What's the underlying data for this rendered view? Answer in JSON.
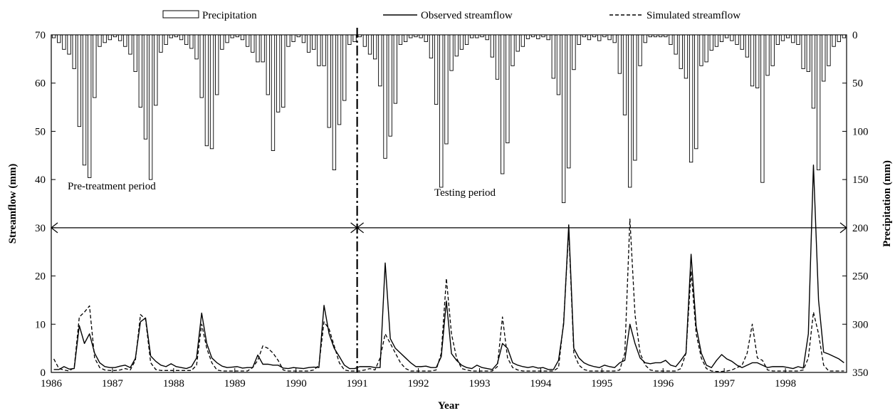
{
  "chart_data": {
    "type": "line",
    "legend": {
      "placement": "top",
      "precipitation": "Precipitation",
      "observed": "Observed streamflow",
      "simulated": "Simulated streamflow"
    },
    "xlabel": "Year",
    "ylabel_left": "Streamflow (mm)",
    "ylabel_right": "Precipitation (mm)",
    "x_ticks": [
      "1986",
      "1987",
      "1988",
      "1989",
      "1990",
      "1991",
      "1992",
      "1993",
      "1994",
      "1995",
      "1996",
      "1997",
      "1998"
    ],
    "y_left_ticks": [
      "0",
      "10",
      "20",
      "30",
      "40",
      "50",
      "60",
      "70"
    ],
    "y_right_ticks": [
      "350",
      "300",
      "250",
      "200",
      "150",
      "100",
      "50",
      "0"
    ],
    "ylim_left": [
      0,
      70
    ],
    "ylim_right_inverted": [
      0,
      350
    ],
    "x_start_year": 1986,
    "months": 156,
    "period_split_year": 1991,
    "period_labels": {
      "pretreatment": "Pre-treatment period",
      "testing": "Testing period"
    },
    "series": [
      {
        "name": "Precipitation",
        "axis": "right",
        "kind": "bar",
        "values": [
          3,
          8,
          15,
          20,
          35,
          95,
          135,
          148,
          65,
          12,
          8,
          5,
          2,
          6,
          12,
          20,
          38,
          75,
          108,
          150,
          73,
          18,
          10,
          3,
          2,
          5,
          10,
          14,
          25,
          65,
          115,
          118,
          62,
          15,
          8,
          3,
          2,
          5,
          12,
          18,
          28,
          28,
          62,
          120,
          80,
          75,
          12,
          7,
          2,
          8,
          18,
          15,
          32,
          32,
          96,
          140,
          93,
          68,
          10,
          7,
          2,
          12,
          20,
          25,
          53,
          128,
          105,
          71,
          10,
          7,
          3,
          2,
          3,
          7,
          24,
          72,
          158,
          113,
          37,
          22,
          15,
          10,
          3,
          3,
          2,
          5,
          23,
          46,
          144,
          112,
          32,
          17,
          12,
          4,
          2,
          4,
          2,
          5,
          45,
          62,
          174,
          138,
          36,
          10,
          2,
          5,
          2,
          6,
          2,
          5,
          8,
          40,
          83,
          158,
          130,
          32,
          8,
          2,
          2,
          2,
          2,
          10,
          20,
          35,
          45,
          132,
          118,
          32,
          28,
          16,
          12,
          7,
          3,
          6,
          10,
          15,
          23,
          53,
          55,
          153,
          42,
          32,
          10,
          6,
          3,
          8,
          10,
          35,
          38,
          76,
          140,
          48,
          32,
          12,
          7,
          3
        ]
      },
      {
        "name": "Observed streamflow",
        "axis": "left",
        "kind": "line",
        "values": [
          0.6,
          0.6,
          1.2,
          0.7,
          0.8,
          9.7,
          6.0,
          8.0,
          4.0,
          2.0,
          1.2,
          1.0,
          1.0,
          1.3,
          1.5,
          1.0,
          2.9,
          10.5,
          11.3,
          3.4,
          2.3,
          1.5,
          1.2,
          1.8,
          1.2,
          1.0,
          0.8,
          1.2,
          3.0,
          12.3,
          6.0,
          3.0,
          2.0,
          1.3,
          1.0,
          1.1,
          1.2,
          0.9,
          1.0,
          1.0,
          3.6,
          1.7,
          1.7,
          1.5,
          1.5,
          0.9,
          0.8,
          1.0,
          0.9,
          0.8,
          1.0,
          1.1,
          1.0,
          13.9,
          8.0,
          5.0,
          3.3,
          1.5,
          0.8,
          0.8,
          1.2,
          1.2,
          1.2,
          1.0,
          1.0,
          22.7,
          7.0,
          5.0,
          4.0,
          3.0,
          2.0,
          1.2,
          1.2,
          1.3,
          1.0,
          1.0,
          3.3,
          14.8,
          3.9,
          2.5,
          1.5,
          1.0,
          0.8,
          1.5,
          1.0,
          0.8,
          0.6,
          1.8,
          6.0,
          5.0,
          2.0,
          1.5,
          1.2,
          1.0,
          1.2,
          0.9,
          1.0,
          0.6,
          0.6,
          2.5,
          10.0,
          30.6,
          5.0,
          3.0,
          2.0,
          1.5,
          1.2,
          1.0,
          1.5,
          1.2,
          1.0,
          2.0,
          2.5,
          10.0,
          6.0,
          3.0,
          2.0,
          1.8,
          2.0,
          2.0,
          2.5,
          1.5,
          1.2,
          2.5,
          4.0,
          24.5,
          9.5,
          4.0,
          1.5,
          1.0,
          2.5,
          3.7,
          2.8,
          2.3,
          1.5,
          1.0,
          1.5,
          2.0,
          2.0,
          1.5,
          1.0,
          1.2,
          1.2,
          1.2,
          1.0,
          0.8,
          1.2,
          0.9,
          8.0,
          43.0,
          15.0,
          4.2,
          3.8,
          3.3,
          2.8,
          2.0
        ]
      },
      {
        "name": "Simulated streamflow",
        "axis": "left",
        "kind": "line",
        "values": [
          2.8,
          0.8,
          0.5,
          0.3,
          1.0,
          11.5,
          12.5,
          13.8,
          3.0,
          1.0,
          0.5,
          0.4,
          0.4,
          0.5,
          0.8,
          0.5,
          2.5,
          12.0,
          11.0,
          2.0,
          0.6,
          0.4,
          0.4,
          0.4,
          0.4,
          0.4,
          0.4,
          0.4,
          1.5,
          10.0,
          5.0,
          2.0,
          0.5,
          0.3,
          0.3,
          0.3,
          0.3,
          0.3,
          0.3,
          1.0,
          2.5,
          5.5,
          5.0,
          4.0,
          2.5,
          0.5,
          0.3,
          0.3,
          0.3,
          0.3,
          0.3,
          0.5,
          1.5,
          10.5,
          9.0,
          5.5,
          2.0,
          0.5,
          0.3,
          0.3,
          0.3,
          0.5,
          0.8,
          0.5,
          3.0,
          8.0,
          6.0,
          4.0,
          2.0,
          0.8,
          0.3,
          0.3,
          0.3,
          0.3,
          0.3,
          0.5,
          4.0,
          19.5,
          8.0,
          3.0,
          0.8,
          0.5,
          0.3,
          0.3,
          0.3,
          0.3,
          0.3,
          1.2,
          11.5,
          3.0,
          1.0,
          0.5,
          0.3,
          0.3,
          0.3,
          0.3,
          0.3,
          0.3,
          0.3,
          1.0,
          10.5,
          29.5,
          4.0,
          1.5,
          0.6,
          0.3,
          0.3,
          0.3,
          0.3,
          0.3,
          0.3,
          0.5,
          4.0,
          31.8,
          12.0,
          4.0,
          1.5,
          0.5,
          0.3,
          0.3,
          0.3,
          0.3,
          0.3,
          0.8,
          4.0,
          21.0,
          8.0,
          3.0,
          0.8,
          0.3,
          0.2,
          0.2,
          0.3,
          0.5,
          1.0,
          1.5,
          4.0,
          10.0,
          3.0,
          2.5,
          0.5,
          0.3,
          0.3,
          0.3,
          0.3,
          0.3,
          0.3,
          0.5,
          3.0,
          12.5,
          8.0,
          1.5,
          0.3,
          0.3,
          0.3,
          0.3
        ]
      }
    ]
  }
}
